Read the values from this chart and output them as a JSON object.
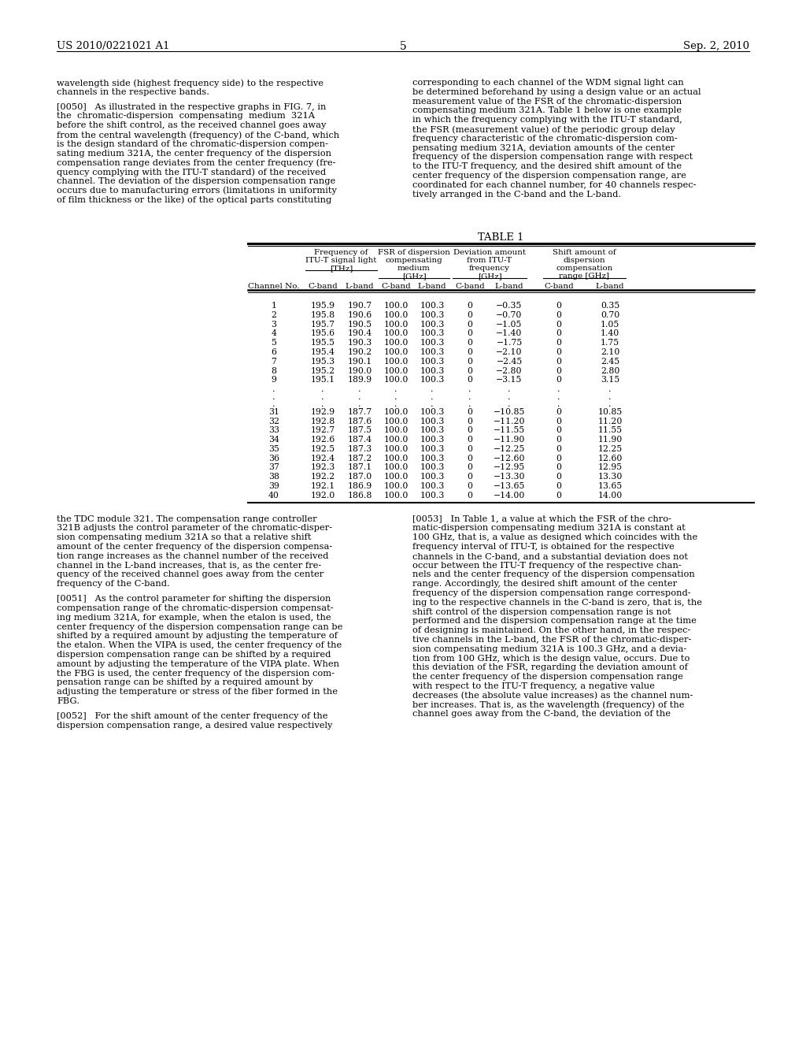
{
  "page_number": "5",
  "patent_number": "US 2010/0221021 A1",
  "patent_date": "Sep. 2, 2010",
  "background_color": "#ffffff",
  "text_color": "#000000",
  "left_column_text": [
    "wavelength side (highest frequency side) to the respective",
    "channels in the respective bands.",
    "",
    "[0050]   As illustrated in the respective graphs in FIG. 7, in",
    "the  chromatic-dispersion  compensating  medium  321A",
    "before the shift control, as the received channel goes away",
    "from the central wavelength (frequency) of the C-band, which",
    "is the design standard of the chromatic-dispersion compen-",
    "sating medium 321A, the center frequency of the dispersion",
    "compensation range deviates from the center frequency (fre-",
    "quency complying with the ITU-T standard) of the received",
    "channel. The deviation of the dispersion compensation range",
    "occurs due to manufacturing errors (limitations in uniformity",
    "of film thickness or the like) of the optical parts constituting"
  ],
  "right_column_text": [
    "corresponding to each channel of the WDM signal light can",
    "be determined beforehand by using a design value or an actual",
    "measurement value of the FSR of the chromatic-dispersion",
    "compensating medium 321A. Table 1 below is one example",
    "in which the frequency complying with the ITU-T standard,",
    "the FSR (measurement value) of the periodic group delay",
    "frequency characteristic of the chromatic-dispersion com-",
    "pensating medium 321A, deviation amounts of the center",
    "frequency of the dispersion compensation range with respect",
    "to the ITU-T frequency, and the desired shift amount of the",
    "center frequency of the dispersion compensation range, are",
    "coordinated for each channel number, for 40 channels respec-",
    "tively arranged in the C-band and the L-band."
  ],
  "table_title": "TABLE 1",
  "table_data_top": [
    [
      "1",
      "195.9",
      "190.7",
      "100.0",
      "100.3",
      "0",
      "−0.35",
      "0",
      "0.35"
    ],
    [
      "2",
      "195.8",
      "190.6",
      "100.0",
      "100.3",
      "0",
      "−0.70",
      "0",
      "0.70"
    ],
    [
      "3",
      "195.7",
      "190.5",
      "100.0",
      "100.3",
      "0",
      "−1.05",
      "0",
      "1.05"
    ],
    [
      "4",
      "195.6",
      "190.4",
      "100.0",
      "100.3",
      "0",
      "−1.40",
      "0",
      "1.40"
    ],
    [
      "5",
      "195.5",
      "190.3",
      "100.0",
      "100.3",
      "0",
      "−1.75",
      "0",
      "1.75"
    ],
    [
      "6",
      "195.4",
      "190.2",
      "100.0",
      "100.3",
      "0",
      "−2.10",
      "0",
      "2.10"
    ],
    [
      "7",
      "195.3",
      "190.1",
      "100.0",
      "100.3",
      "0",
      "−2.45",
      "0",
      "2.45"
    ],
    [
      "8",
      "195.2",
      "190.0",
      "100.0",
      "100.3",
      "0",
      "−2.80",
      "0",
      "2.80"
    ],
    [
      "9",
      "195.1",
      "189.9",
      "100.0",
      "100.3",
      "0",
      "−3.15",
      "0",
      "3.15"
    ]
  ],
  "table_data_bottom": [
    [
      "31",
      "192.9",
      "187.7",
      "100.0",
      "100.3",
      "0",
      "−10.85",
      "0",
      "10.85"
    ],
    [
      "32",
      "192.8",
      "187.6",
      "100.0",
      "100.3",
      "0",
      "−11.20",
      "0",
      "11.20"
    ],
    [
      "33",
      "192.7",
      "187.5",
      "100.0",
      "100.3",
      "0",
      "−11.55",
      "0",
      "11.55"
    ],
    [
      "34",
      "192.6",
      "187.4",
      "100.0",
      "100.3",
      "0",
      "−11.90",
      "0",
      "11.90"
    ],
    [
      "35",
      "192.5",
      "187.3",
      "100.0",
      "100.3",
      "0",
      "−12.25",
      "0",
      "12.25"
    ],
    [
      "36",
      "192.4",
      "187.2",
      "100.0",
      "100.3",
      "0",
      "−12.60",
      "0",
      "12.60"
    ],
    [
      "37",
      "192.3",
      "187.1",
      "100.0",
      "100.3",
      "0",
      "−12.95",
      "0",
      "12.95"
    ],
    [
      "38",
      "192.2",
      "187.0",
      "100.0",
      "100.3",
      "0",
      "−13.30",
      "0",
      "13.30"
    ],
    [
      "39",
      "192.1",
      "186.9",
      "100.0",
      "100.3",
      "0",
      "−13.65",
      "0",
      "13.65"
    ],
    [
      "40",
      "192.0",
      "186.8",
      "100.0",
      "100.3",
      "0",
      "−14.00",
      "0",
      "14.00"
    ]
  ],
  "bottom_left_text": [
    "the TDC module 321. The compensation range controller",
    "321B adjusts the control parameter of the chromatic-disper-",
    "sion compensating medium 321A so that a relative shift",
    "amount of the center frequency of the dispersion compensa-",
    "tion range increases as the channel number of the received",
    "channel in the L-band increases, that is, as the center fre-",
    "quency of the received channel goes away from the center",
    "frequency of the C-band.",
    "",
    "[0051]   As the control parameter for shifting the dispersion",
    "compensation range of the chromatic-dispersion compensat-",
    "ing medium 321A, for example, when the etalon is used, the",
    "center frequency of the dispersion compensation range can be",
    "shifted by a required amount by adjusting the temperature of",
    "the etalon. When the VIPA is used, the center frequency of the",
    "dispersion compensation range can be shifted by a required",
    "amount by adjusting the temperature of the VIPA plate. When",
    "the FBG is used, the center frequency of the dispersion com-",
    "pensation range can be shifted by a required amount by",
    "adjusting the temperature or stress of the fiber formed in the",
    "FBG.",
    "",
    "[0052]   For the shift amount of the center frequency of the",
    "dispersion compensation range, a desired value respectively"
  ],
  "bottom_right_text": [
    "[0053]   In Table 1, a value at which the FSR of the chro-",
    "matic-dispersion compensating medium 321A is constant at",
    "100 GHz, that is, a value as designed which coincides with the",
    "frequency interval of ITU-T, is obtained for the respective",
    "channels in the C-band, and a substantial deviation does not",
    "occur between the ITU-T frequency of the respective chan-",
    "nels and the center frequency of the dispersion compensation",
    "range. Accordingly, the desired shift amount of the center",
    "frequency of the dispersion compensation range correspond-",
    "ing to the respective channels in the C-band is zero, that is, the",
    "shift control of the dispersion compensation range is not",
    "performed and the dispersion compensation range at the time",
    "of designing is maintained. On the other hand, in the respec-",
    "tive channels in the L-band, the FSR of the chromatic-disper-",
    "sion compensating medium 321A is 100.3 GHz, and a devia-",
    "tion from 100 GHz, which is the design value, occurs. Due to",
    "this deviation of the FSR, regarding the deviation amount of",
    "the center frequency of the dispersion compensation range",
    "with respect to the ITU-T frequency, a negative value",
    "decreases (the absolute value increases) as the channel num-",
    "ber increases. That is, as the wavelength (frequency) of the",
    "channel goes away from the C-band, the deviation of the"
  ]
}
